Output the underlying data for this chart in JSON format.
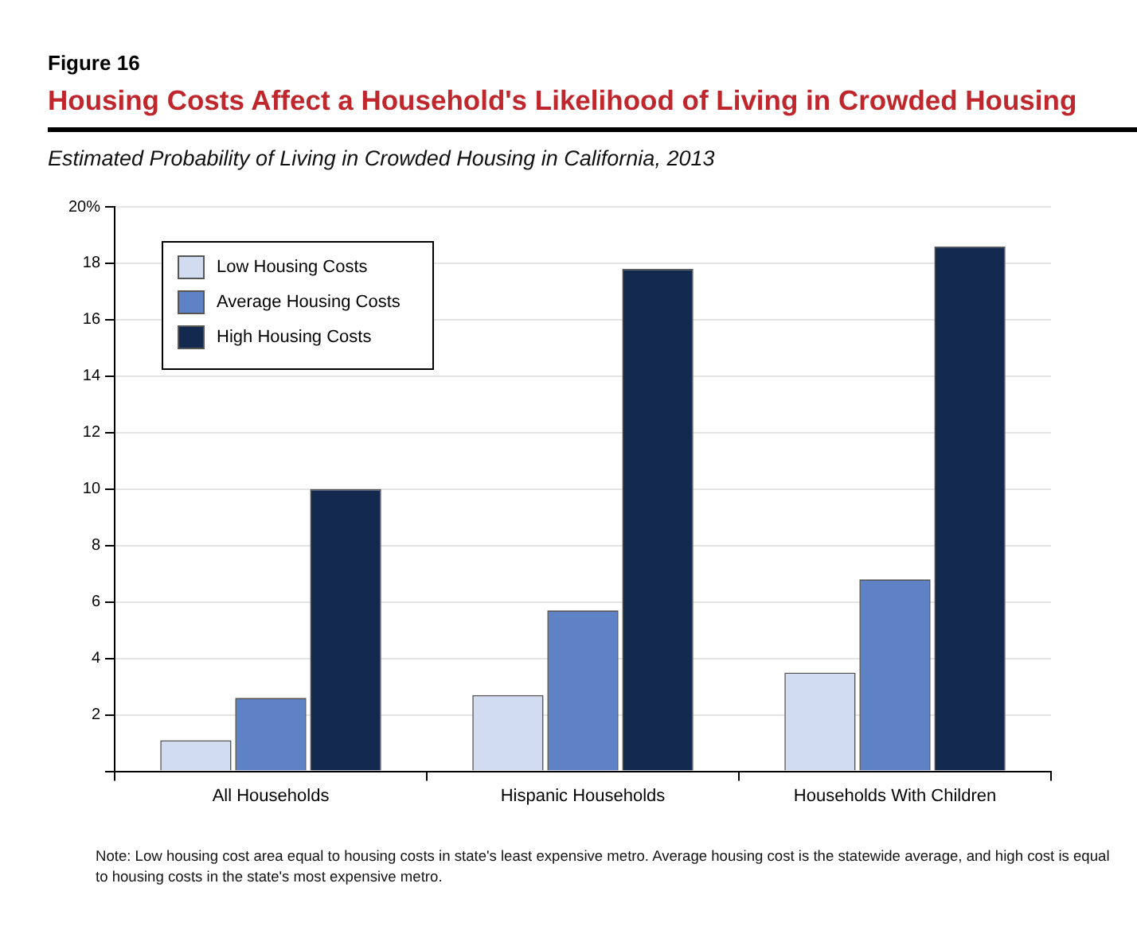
{
  "chart_data": {
    "type": "bar",
    "title": "Housing Costs Affect a Household's Likelihood of Living in Crowded Housing",
    "subtitle": "Estimated Probability of Living in Crowded Housing in California, 2013",
    "annotations": [
      "Figure 16",
      "Note: Low housing cost area equal to housing costs in state's least expensive metro. Average housing cost is the statewide average, and high cost is equal to housing costs in the state's most expensive metro."
    ],
    "categories": [
      "All Households",
      "Hispanic Households",
      "Households With Children"
    ],
    "series": [
      {
        "name": "Low Housing Costs",
        "color": "#d2dcf1",
        "values": [
          1.1,
          2.7,
          3.5
        ]
      },
      {
        "name": "Average Housing Costs",
        "color": "#5f82c6",
        "values": [
          2.6,
          5.7,
          6.8
        ]
      },
      {
        "name": "High Housing Costs",
        "color": "#13294d",
        "values": [
          10.0,
          17.8,
          18.6
        ]
      }
    ],
    "ylim": [
      0,
      20
    ],
    "yticks": [
      {
        "value": 0,
        "label": null
      },
      2,
      4,
      6,
      8,
      10,
      12,
      14,
      16,
      18,
      {
        "value": 20,
        "label": "20%"
      }
    ],
    "grid": "y",
    "legend": "top left"
  }
}
